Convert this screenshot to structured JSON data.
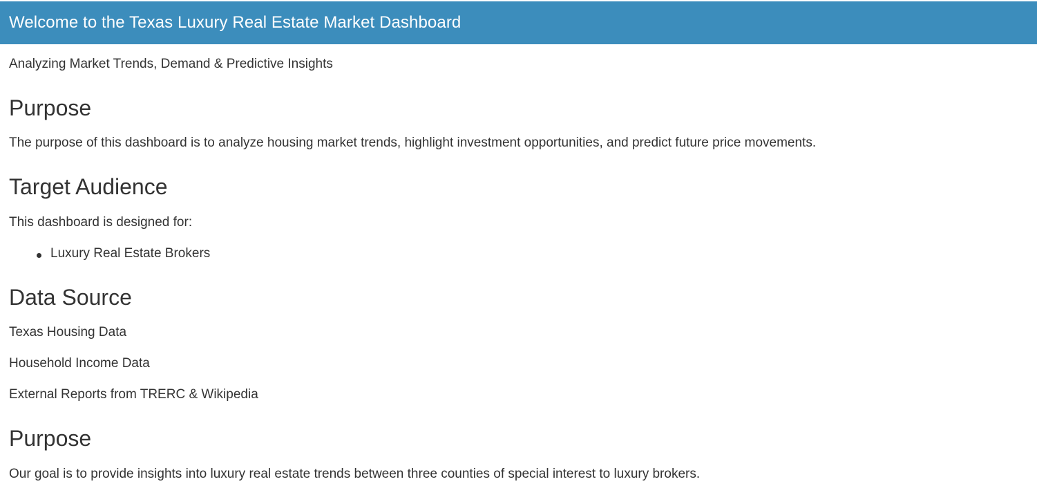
{
  "header": {
    "title": "Welcome to the Texas Luxury Real Estate Market Dashboard",
    "background_color": "#3c8dbc"
  },
  "subtitle": "Analyzing Market Trends, Demand & Predictive Insights",
  "sections": {
    "purpose": {
      "heading": "Purpose",
      "text": "The purpose of this dashboard is to analyze housing market trends, highlight investment opportunities, and predict future price movements."
    },
    "audience": {
      "heading": "Target Audience",
      "intro": "This dashboard is designed for:",
      "items": [
        "Luxury Real Estate Brokers"
      ]
    },
    "data_source": {
      "heading": "Data Source",
      "items": [
        "Texas Housing Data",
        "Household Income Data",
        "External Reports from TRERC & Wikipedia"
      ]
    },
    "goal": {
      "heading": "Purpose",
      "text": "Our goal is to provide insights into luxury real estate trends between three counties of special interest to luxury brokers."
    }
  }
}
